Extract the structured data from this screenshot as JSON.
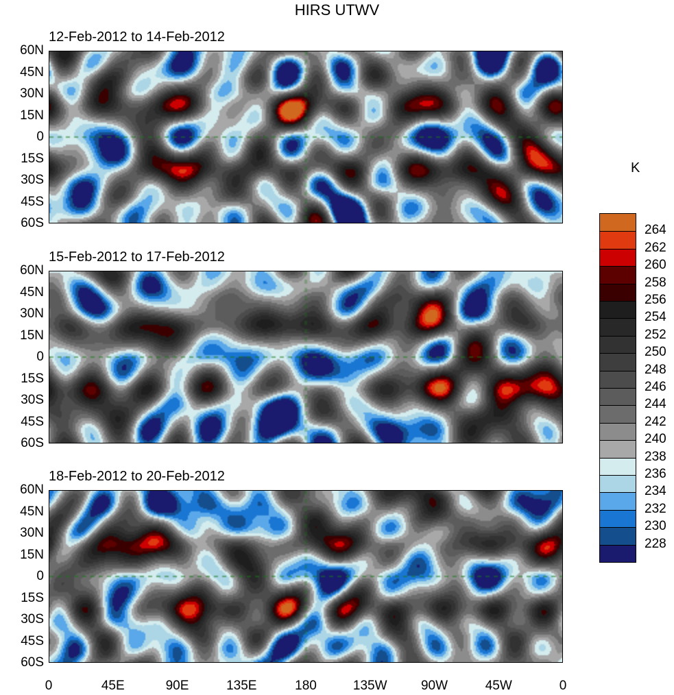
{
  "chart_data": {
    "type": "heatmap",
    "title": "HIRS UTWV",
    "units_label": "K",
    "panels": [
      {
        "title": "12-Feb-2012 to 14-Feb-2012",
        "seed": 1
      },
      {
        "title": "15-Feb-2012 to 17-Feb-2012",
        "seed": 2
      },
      {
        "title": "18-Feb-2012 to 20-Feb-2012",
        "seed": 3
      }
    ],
    "y_ticks": [
      "60N",
      "45N",
      "30N",
      "15N",
      "0",
      "15S",
      "30S",
      "45S",
      "60S"
    ],
    "x_ticks": [
      "0",
      "45E",
      "90E",
      "135E",
      "180",
      "135W",
      "90W",
      "45W",
      "0"
    ],
    "xlim": [
      0,
      360
    ],
    "ylim": [
      -60,
      60
    ],
    "levels": [
      228,
      230,
      232,
      234,
      236,
      238,
      240,
      242,
      244,
      246,
      248,
      250,
      252,
      254,
      256,
      258,
      260,
      262,
      264
    ],
    "colors": [
      "#1a1a6e",
      "#154e8c",
      "#1976d2",
      "#5aa8ea",
      "#acd6e6",
      "#d4ecee",
      "#a8a8a8",
      "#8c8c8c",
      "#6c6c6c",
      "#5c5c5c",
      "#4c4c4c",
      "#3e3e3e",
      "#323232",
      "#282828",
      "#1e1e1e",
      "#3a0000",
      "#5c0000",
      "#cc0000",
      "#e03a10",
      "#d06820"
    ],
    "colorbar_labels": [
      "264",
      "262",
      "260",
      "258",
      "256",
      "254",
      "252",
      "250",
      "248",
      "246",
      "244",
      "242",
      "240",
      "238",
      "236",
      "234",
      "232",
      "230",
      "228"
    ]
  }
}
